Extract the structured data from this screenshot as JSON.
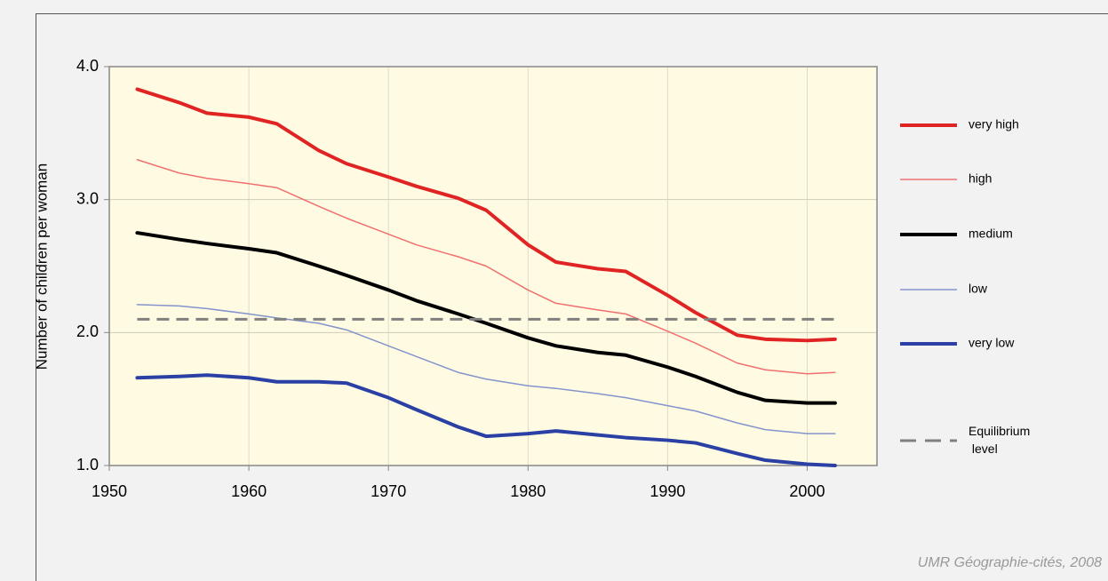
{
  "chart_data": {
    "type": "line",
    "y_label": "Number of children per woman",
    "source": "UMR Géographie-cités, 2008",
    "xlim": [
      1950,
      2005
    ],
    "ylim": [
      1.0,
      4.0
    ],
    "xticks": [
      1950,
      1960,
      1970,
      1980,
      1990,
      2000
    ],
    "yticks": [
      {
        "value": 1.0,
        "label": "1.0"
      },
      {
        "value": 2.0,
        "label": "2.0"
      },
      {
        "value": 3.0,
        "label": "3.0"
      },
      {
        "value": 4.0,
        "label": "4.0"
      }
    ],
    "grid": true,
    "legend": "right",
    "x": [
      1952,
      1955,
      1957,
      1960,
      1962,
      1965,
      1967,
      1970,
      1972,
      1975,
      1977,
      1980,
      1982,
      1985,
      1987,
      1990,
      1992,
      1995,
      1997,
      2000,
      2002
    ],
    "series": [
      {
        "name": "very high",
        "color": "#e02424",
        "line_width": 4,
        "values": [
          3.83,
          3.73,
          3.65,
          3.62,
          3.57,
          3.37,
          3.27,
          3.17,
          3.1,
          3.01,
          2.92,
          2.66,
          2.53,
          2.48,
          2.46,
          2.28,
          2.15,
          1.98,
          1.95,
          1.94,
          1.95
        ]
      },
      {
        "name": "high",
        "color": "#f07070",
        "line_width": 1.5,
        "values": [
          3.3,
          3.2,
          3.16,
          3.12,
          3.09,
          2.95,
          2.86,
          2.74,
          2.66,
          2.57,
          2.5,
          2.32,
          2.22,
          2.17,
          2.14,
          2.01,
          1.92,
          1.77,
          1.72,
          1.69,
          1.7
        ]
      },
      {
        "name": "medium",
        "color": "#000000",
        "line_width": 4,
        "values": [
          2.75,
          2.7,
          2.67,
          2.63,
          2.6,
          2.5,
          2.43,
          2.32,
          2.24,
          2.14,
          2.07,
          1.96,
          1.9,
          1.85,
          1.83,
          1.74,
          1.67,
          1.55,
          1.49,
          1.47,
          1.47
        ]
      },
      {
        "name": "low",
        "color": "#8494cc",
        "line_width": 1.5,
        "values": [
          2.21,
          2.2,
          2.18,
          2.14,
          2.11,
          2.07,
          2.02,
          1.9,
          1.82,
          1.7,
          1.65,
          1.6,
          1.58,
          1.54,
          1.51,
          1.45,
          1.41,
          1.32,
          1.27,
          1.24,
          1.24
        ]
      },
      {
        "name": "very low",
        "color": "#2a40a4",
        "line_width": 4,
        "values": [
          1.66,
          1.67,
          1.68,
          1.66,
          1.63,
          1.63,
          1.62,
          1.51,
          1.42,
          1.29,
          1.22,
          1.24,
          1.26,
          1.23,
          1.21,
          1.19,
          1.17,
          1.09,
          1.04,
          1.01,
          1.0
        ]
      },
      {
        "name": "Equilibrium level",
        "color": "#808080",
        "line_width": 3,
        "dashed": true,
        "x": [
          1952,
          2002
        ],
        "values": [
          2.1,
          2.1
        ]
      }
    ]
  }
}
